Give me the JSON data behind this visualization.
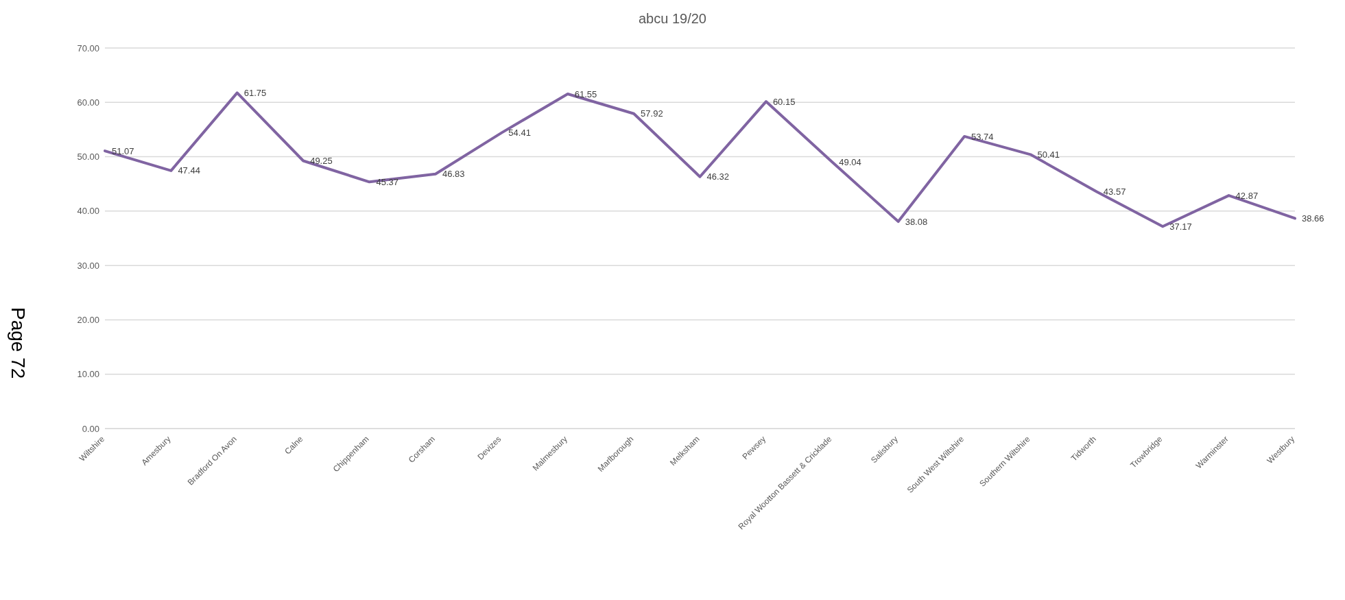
{
  "chart_data": {
    "type": "line",
    "title": "abcu 19/20",
    "categories": [
      "Wiltshire",
      "Amesbury",
      "Bradford On Avon",
      "Calne",
      "Chippenham",
      "Corsham",
      "Devizes",
      "Malmesbury",
      "Marlborough",
      "Melksham",
      "Pewsey",
      "Royal Wootton Bassett & Cricklade",
      "Salisbury",
      "South West Wiltshire",
      "Southern Wiltshire",
      "Tidworth",
      "Trowbridge",
      "Warminster",
      "Westbury"
    ],
    "series": [
      {
        "color": "#8064a2",
        "values": [
          51.07,
          47.44,
          61.75,
          49.25,
          45.37,
          46.83,
          54.41,
          61.55,
          57.92,
          46.32,
          60.15,
          49.04,
          38.08,
          53.74,
          50.41,
          43.57,
          37.17,
          42.87,
          38.66
        ]
      }
    ],
    "ylim": [
      0,
      70
    ],
    "yticks": [
      {
        "value": 0,
        "label": "0.00"
      },
      {
        "value": 10,
        "label": "10.00"
      },
      {
        "value": 20,
        "label": "20.00"
      },
      {
        "value": 30,
        "label": "30.00"
      },
      {
        "value": 40,
        "label": "40.00"
      },
      {
        "value": 50,
        "label": "50.00"
      },
      {
        "value": 60,
        "label": "60.00"
      },
      {
        "value": 70,
        "label": "70.00"
      }
    ],
    "grid": "y",
    "legend": false,
    "marker": "none",
    "line_style": "solid",
    "data_labels": true,
    "annotations": [
      "Page 72"
    ]
  }
}
